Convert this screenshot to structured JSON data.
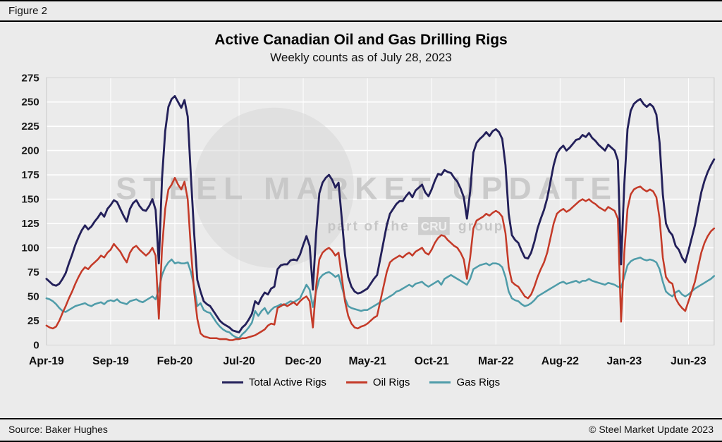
{
  "figure_label": "Figure 2",
  "title": "Active Canadian Oil and Gas Drilling Rigs",
  "subtitle": "Weekly counts as of July 28, 2023",
  "source": "Source: Baker Hughes",
  "copyright": "© Steel Market Update 2023",
  "watermark": {
    "main": "STEEL MARKET UPDATE",
    "sub_prefix": "part of the",
    "cru": "CRU",
    "sub_suffix": "group"
  },
  "chart_data": {
    "type": "line",
    "title": "Active Canadian Oil and Gas Drilling Rigs",
    "subtitle": "Weekly counts as of July 28, 2023",
    "xlabel": "",
    "ylabel": "",
    "ylim": [
      0,
      275
    ],
    "y_ticks": [
      0,
      25,
      50,
      75,
      100,
      125,
      150,
      175,
      200,
      225,
      250,
      275
    ],
    "grid": true,
    "legend_position": "bottom",
    "x_tick_labels": [
      "Apr-19",
      "Sep-19",
      "Feb-20",
      "Jul-20",
      "Dec-20",
      "May-21",
      "Oct-21",
      "Mar-22",
      "Aug-22",
      "Jan-23",
      "Jun-23"
    ],
    "x_tick_indices": [
      0,
      20,
      40,
      60,
      80,
      100,
      120,
      140,
      160,
      180,
      200
    ],
    "x_unit": "week",
    "series": [
      {
        "name": "Total Active Rigs",
        "color": "#23205A",
        "values": [
          68,
          65,
          62,
          61,
          63,
          68,
          74,
          84,
          93,
          103,
          111,
          118,
          123,
          119,
          122,
          127,
          131,
          136,
          132,
          140,
          144,
          149,
          147,
          140,
          133,
          127,
          140,
          146,
          149,
          143,
          139,
          138,
          143,
          150,
          139,
          84,
          172,
          220,
          245,
          253,
          256,
          250,
          244,
          252,
          235,
          173,
          115,
          67,
          55,
          45,
          42,
          40,
          35,
          30,
          25,
          22,
          20,
          18,
          15,
          14,
          13,
          18,
          21,
          26,
          32,
          45,
          42,
          49,
          54,
          52,
          58,
          60,
          78,
          82,
          83,
          83,
          87,
          88,
          87,
          93,
          103,
          112,
          102,
          57,
          115,
          156,
          167,
          172,
          175,
          170,
          162,
          167,
          130,
          93,
          70,
          60,
          55,
          53,
          54,
          56,
          58,
          63,
          68,
          72,
          89,
          106,
          123,
          135,
          140,
          145,
          148,
          148,
          153,
          157,
          152,
          159,
          162,
          165,
          157,
          153,
          160,
          169,
          176,
          175,
          180,
          178,
          177,
          172,
          168,
          161,
          152,
          130,
          158,
          198,
          208,
          212,
          215,
          219,
          215,
          220,
          222,
          219,
          212,
          185,
          135,
          113,
          108,
          105,
          97,
          90,
          89,
          95,
          106,
          120,
          130,
          139,
          151,
          168,
          185,
          197,
          202,
          205,
          200,
          203,
          207,
          211,
          212,
          216,
          214,
          218,
          213,
          210,
          206,
          203,
          200,
          206,
          203,
          200,
          190,
          83,
          165,
          222,
          241,
          248,
          251,
          253,
          248,
          245,
          248,
          245,
          237,
          208,
          155,
          125,
          117,
          113,
          102,
          98,
          90,
          85,
          97,
          110,
          123,
          140,
          157,
          169,
          178,
          185,
          191
        ]
      },
      {
        "name": "Oil Rigs",
        "color": "#C43A28",
        "values": [
          20,
          18,
          17,
          19,
          25,
          33,
          40,
          48,
          55,
          63,
          70,
          76,
          80,
          78,
          82,
          85,
          88,
          92,
          90,
          95,
          98,
          104,
          100,
          96,
          90,
          85,
          95,
          100,
          102,
          98,
          95,
          92,
          95,
          100,
          92,
          27,
          100,
          140,
          160,
          165,
          172,
          165,
          160,
          168,
          150,
          98,
          55,
          27,
          12,
          9,
          8,
          7,
          7,
          7,
          6,
          6,
          6,
          5,
          5,
          6,
          6,
          7,
          7,
          8,
          9,
          10,
          12,
          14,
          16,
          20,
          22,
          21,
          38,
          40,
          42,
          40,
          42,
          44,
          41,
          45,
          48,
          50,
          45,
          18,
          60,
          88,
          95,
          98,
          100,
          97,
          92,
          95,
          70,
          45,
          30,
          22,
          18,
          17,
          19,
          20,
          22,
          25,
          28,
          30,
          45,
          60,
          75,
          85,
          88,
          90,
          92,
          90,
          93,
          95,
          92,
          96,
          98,
          100,
          95,
          93,
          98,
          105,
          110,
          113,
          112,
          108,
          105,
          102,
          100,
          95,
          88,
          68,
          90,
          120,
          128,
          130,
          132,
          135,
          133,
          136,
          138,
          136,
          132,
          115,
          80,
          65,
          62,
          60,
          55,
          50,
          48,
          52,
          60,
          70,
          78,
          85,
          95,
          110,
          125,
          135,
          138,
          140,
          137,
          139,
          142,
          145,
          148,
          150,
          148,
          150,
          147,
          145,
          142,
          140,
          138,
          142,
          140,
          138,
          130,
          24,
          95,
          140,
          155,
          160,
          162,
          163,
          160,
          158,
          160,
          158,
          152,
          130,
          90,
          70,
          65,
          63,
          48,
          42,
          38,
          35,
          45,
          55,
          65,
          80,
          95,
          105,
          112,
          117,
          120
        ]
      },
      {
        "name": "Gas Rigs",
        "color": "#4F9CA9",
        "values": [
          48,
          47,
          45,
          42,
          38,
          35,
          34,
          36,
          38,
          40,
          41,
          42,
          43,
          41,
          40,
          42,
          43,
          44,
          42,
          45,
          46,
          45,
          47,
          44,
          43,
          42,
          45,
          46,
          47,
          45,
          44,
          46,
          48,
          50,
          47,
          57,
          72,
          80,
          85,
          88,
          84,
          85,
          84,
          84,
          85,
          75,
          60,
          40,
          43,
          36,
          34,
          33,
          28,
          23,
          19,
          16,
          14,
          13,
          10,
          8,
          7,
          11,
          14,
          18,
          23,
          35,
          30,
          35,
          38,
          32,
          36,
          39,
          40,
          42,
          41,
          43,
          45,
          44,
          46,
          48,
          55,
          62,
          57,
          39,
          55,
          68,
          72,
          74,
          75,
          73,
          70,
          72,
          60,
          48,
          40,
          38,
          37,
          36,
          35,
          36,
          36,
          38,
          40,
          42,
          44,
          46,
          48,
          50,
          52,
          55,
          56,
          58,
          60,
          62,
          60,
          63,
          64,
          65,
          62,
          60,
          62,
          64,
          66,
          62,
          68,
          70,
          72,
          70,
          68,
          66,
          64,
          62,
          68,
          78,
          80,
          82,
          83,
          84,
          82,
          84,
          84,
          83,
          80,
          70,
          55,
          48,
          46,
          45,
          42,
          40,
          41,
          43,
          46,
          50,
          52,
          54,
          56,
          58,
          60,
          62,
          64,
          65,
          63,
          64,
          65,
          66,
          64,
          66,
          66,
          68,
          66,
          65,
          64,
          63,
          62,
          64,
          63,
          62,
          60,
          59,
          70,
          82,
          86,
          88,
          89,
          90,
          88,
          87,
          88,
          87,
          85,
          78,
          65,
          55,
          52,
          50,
          54,
          56,
          52,
          50,
          52,
          55,
          58,
          60,
          62,
          64,
          66,
          68,
          71
        ]
      }
    ]
  }
}
